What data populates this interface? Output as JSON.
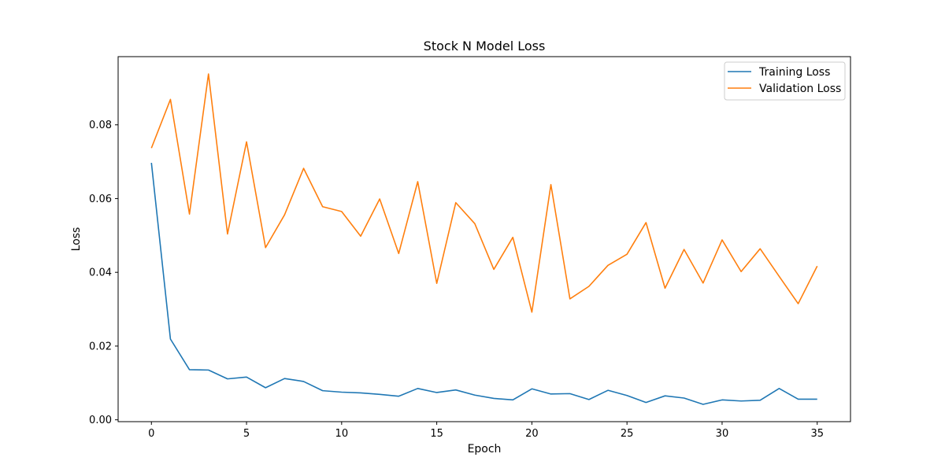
{
  "chart_data": {
    "type": "line",
    "title": "Stock N Model Loss",
    "xlabel": "Epoch",
    "ylabel": "Loss",
    "xlim": [
      -1.75,
      36.75
    ],
    "ylim": [
      -0.0005,
      0.0985
    ],
    "xticks": [
      0,
      5,
      10,
      15,
      20,
      25,
      30,
      35
    ],
    "xtick_labels": [
      "0",
      "5",
      "10",
      "15",
      "20",
      "25",
      "30",
      "35"
    ],
    "yticks": [
      0.0,
      0.02,
      0.04,
      0.06,
      0.08
    ],
    "ytick_labels": [
      "0.00",
      "0.02",
      "0.04",
      "0.06",
      "0.08"
    ],
    "grid": false,
    "legend_position": "top-right",
    "x": [
      0,
      1,
      2,
      3,
      4,
      5,
      6,
      7,
      8,
      9,
      10,
      11,
      12,
      13,
      14,
      15,
      16,
      17,
      18,
      19,
      20,
      21,
      22,
      23,
      24,
      25,
      26,
      27,
      28,
      29,
      30,
      31,
      32,
      33,
      34,
      35
    ],
    "series": [
      {
        "name": "Training Loss",
        "color": "#1f77b4",
        "values": [
          0.0697,
          0.0219,
          0.0136,
          0.0135,
          0.0111,
          0.0116,
          0.0087,
          0.0112,
          0.0104,
          0.0079,
          0.0075,
          0.0073,
          0.0069,
          0.0064,
          0.0085,
          0.0074,
          0.0081,
          0.0067,
          0.0058,
          0.0054,
          0.0084,
          0.007,
          0.0071,
          0.0055,
          0.008,
          0.0066,
          0.0047,
          0.0065,
          0.0059,
          0.0042,
          0.0054,
          0.0051,
          0.0053,
          0.0085,
          0.0056,
          0.0056
        ]
      },
      {
        "name": "Validation Loss",
        "color": "#ff7f0e",
        "values": [
          0.0737,
          0.0869,
          0.0558,
          0.0938,
          0.0504,
          0.0754,
          0.0467,
          0.0556,
          0.0682,
          0.0578,
          0.0565,
          0.0498,
          0.0599,
          0.0451,
          0.0646,
          0.037,
          0.0589,
          0.0532,
          0.0408,
          0.0495,
          0.0292,
          0.0638,
          0.0328,
          0.0362,
          0.0419,
          0.0449,
          0.0535,
          0.0357,
          0.0462,
          0.0371,
          0.0488,
          0.0402,
          0.0464,
          0.0389,
          0.0315,
          0.0417
        ]
      }
    ]
  }
}
